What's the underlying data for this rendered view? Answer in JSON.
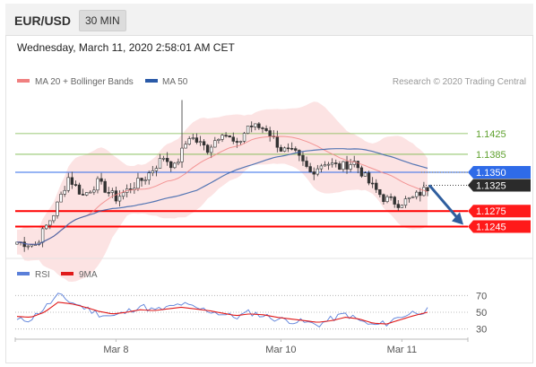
{
  "header": {
    "pair": "EUR/USD",
    "timeframe": "30 MIN"
  },
  "datetime": "Wednesday, March 11, 2020 2:58:01 AM CET",
  "legend": {
    "ma20": "MA 20 + Bollinger Bands",
    "ma50": "MA 50",
    "rsi": "RSI",
    "ma9": "9MA"
  },
  "credit": "Research © 2020 Trading Central",
  "colors": {
    "ma20": "#f08080",
    "ma50": "#2a5aa8",
    "support": "#ff0000",
    "resistance": "#7ab84a",
    "pivot": "#2f6be8",
    "candle_up": "#ffffff",
    "candle_down": "#333333",
    "arrow": "#2f5e9e",
    "rsi": "#5a7fd9",
    "ma9": "#e01a1a"
  },
  "chart_data": [
    {
      "type": "candlestick",
      "title": "EUR/USD 30 MIN",
      "x_tick_labels": [
        "Mar 8",
        "Mar 10",
        "Mar 11"
      ],
      "y_range": [
        1.1185,
        1.151
      ],
      "price_levels": [
        {
          "label": "1.1425",
          "value": 1.1425,
          "kind": "resistance"
        },
        {
          "label": "1.1385",
          "value": 1.1385,
          "kind": "resistance"
        },
        {
          "label": "1.1350",
          "value": 1.135,
          "kind": "pivot"
        },
        {
          "label": "1.1325",
          "value": 1.1325,
          "kind": "last"
        },
        {
          "label": "1.1275",
          "value": 1.1275,
          "kind": "support"
        },
        {
          "label": "1.1245",
          "value": 1.1245,
          "kind": "support"
        }
      ],
      "key_points": [
        {
          "t": 0,
          "p": 1.1215
        },
        {
          "t": 5,
          "p": 1.121
        },
        {
          "t": 10,
          "p": 1.127
        },
        {
          "t": 14,
          "p": 1.134
        },
        {
          "t": 18,
          "p": 1.1305
        },
        {
          "t": 22,
          "p": 1.133
        },
        {
          "t": 27,
          "p": 1.13
        },
        {
          "t": 30,
          "p": 1.1315
        },
        {
          "t": 35,
          "p": 1.134
        },
        {
          "t": 40,
          "p": 1.138
        },
        {
          "t": 43,
          "p": 1.136
        },
        {
          "t": 47,
          "p": 1.142
        },
        {
          "t": 52,
          "p": 1.1395
        },
        {
          "t": 56,
          "p": 1.143
        },
        {
          "t": 60,
          "p": 1.14
        },
        {
          "t": 63,
          "p": 1.144
        },
        {
          "t": 68,
          "p": 1.1435
        },
        {
          "t": 72,
          "p": 1.1395
        },
        {
          "t": 76,
          "p": 1.1385
        },
        {
          "t": 80,
          "p": 1.135
        },
        {
          "t": 84,
          "p": 1.137
        },
        {
          "t": 88,
          "p": 1.136
        },
        {
          "t": 92,
          "p": 1.137
        },
        {
          "t": 96,
          "p": 1.133
        },
        {
          "t": 100,
          "p": 1.13
        },
        {
          "t": 104,
          "p": 1.129
        },
        {
          "t": 108,
          "p": 1.13
        },
        {
          "t": 112,
          "p": 1.132
        }
      ],
      "forecast_arrow": {
        "from": 1.1325,
        "to": 1.1245
      }
    },
    {
      "type": "line",
      "title": "RSI",
      "y_tick_labels": [
        "70",
        "50",
        "30"
      ],
      "y_range": [
        20,
        80
      ],
      "series": [
        {
          "name": "RSI",
          "key_points": [
            40,
            42,
            55,
            70,
            62,
            55,
            48,
            45,
            50,
            58,
            52,
            55,
            60,
            55,
            52,
            48,
            44,
            50,
            46,
            42,
            40,
            38,
            35,
            42,
            48,
            40,
            34,
            37,
            45,
            50,
            52
          ]
        },
        {
          "name": "9MA",
          "key_points": [
            45,
            44,
            50,
            62,
            60,
            56,
            51,
            48,
            50,
            53,
            52,
            54,
            56,
            54,
            52,
            49,
            46,
            48,
            47,
            44,
            42,
            40,
            38,
            40,
            44,
            42,
            37,
            36,
            41,
            46,
            50
          ]
        }
      ]
    }
  ]
}
